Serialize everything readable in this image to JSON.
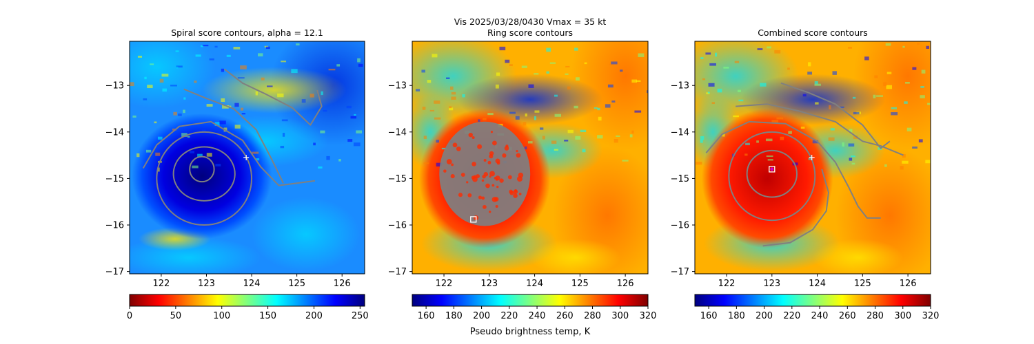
{
  "figure": {
    "suptitle_line1": "Vis  2025/03/28/0430    Vmax = 35 kt",
    "colorbar_xlabel": "Pseudo brightness temp, K"
  },
  "chart_data": [
    {
      "type": "heatmap",
      "title": "Spiral score contours, alpha = 12.1",
      "xlim": [
        121.3,
        126.5
      ],
      "ylim": [
        -17.05,
        -12.05
      ],
      "xticks": [
        "122",
        "123",
        "124",
        "125",
        "126"
      ],
      "yticks": [
        "−13",
        "−14",
        "−15",
        "−16",
        "−17"
      ],
      "colormap": "jet_r",
      "colorbar": {
        "range": [
          0,
          255
        ],
        "ticks": [
          "0",
          "50",
          "100",
          "150",
          "200",
          "250"
        ]
      },
      "background": "mostly cold blue with a deep blue core near 123E, -14.8",
      "contours": [
        {
          "kind": "closed",
          "center": [
            122.9,
            -14.8
          ],
          "rx": 0.27,
          "ry": 0.27
        },
        {
          "kind": "closed",
          "center": [
            122.95,
            -14.9
          ],
          "rx": 0.68,
          "ry": 0.58
        },
        {
          "kind": "closed",
          "center": [
            122.95,
            -15.0
          ],
          "rx": 1.05,
          "ry": 1.0
        },
        {
          "kind": "open",
          "points": [
            [
              121.6,
              -14.78
            ],
            [
              121.9,
              -14.28
            ],
            [
              122.4,
              -13.88
            ],
            [
              123.1,
              -13.78
            ],
            [
              123.8,
              -14.18
            ],
            [
              124.2,
              -14.75
            ],
            [
              124.6,
              -15.15
            ],
            [
              125.0,
              -15.1
            ],
            [
              125.4,
              -15.05
            ]
          ]
        },
        {
          "kind": "open",
          "points": [
            [
              122.5,
              -13.08
            ],
            [
              123.0,
              -13.28
            ],
            [
              123.6,
              -13.5
            ],
            [
              124.1,
              -13.95
            ],
            [
              124.45,
              -14.6
            ],
            [
              124.7,
              -15.1
            ]
          ]
        },
        {
          "kind": "open",
          "points": [
            [
              123.4,
              -12.65
            ],
            [
              123.8,
              -12.95
            ],
            [
              124.3,
              -13.18
            ],
            [
              124.9,
              -13.48
            ],
            [
              125.3,
              -13.85
            ],
            [
              125.55,
              -13.45
            ],
            [
              125.45,
              -13.1
            ]
          ]
        }
      ],
      "markers": [
        {
          "symbol": "+",
          "x": 123.88,
          "y": -14.55,
          "color": "#ffffff"
        }
      ]
    },
    {
      "type": "heatmap",
      "title": "Ring score contours",
      "xlim": [
        121.3,
        126.5
      ],
      "ylim": [
        -17.05,
        -12.05
      ],
      "xticks": [
        "122",
        "123",
        "124",
        "125",
        "126"
      ],
      "yticks": [
        "−13",
        "−14",
        "−15",
        "−16",
        "−17"
      ],
      "colormap": "jet",
      "colorbar": {
        "range": [
          150,
          320
        ],
        "ticks": [
          "160",
          "180",
          "200",
          "220",
          "240",
          "260",
          "280",
          "300",
          "320"
        ]
      },
      "background": "warm red/orange cloud shield centered near 123E, -15 with cooler cyan/blue banding to the north",
      "contour_blob": {
        "center": [
          122.9,
          -14.9
        ],
        "rx": 0.98,
        "ry": 1.1,
        "color": "#808080"
      },
      "markers": [
        {
          "symbol": "square",
          "x": 122.65,
          "y": -15.88,
          "color": "#ffffff"
        }
      ]
    },
    {
      "type": "heatmap",
      "title": "Combined score contours",
      "xlim": [
        121.3,
        126.5
      ],
      "ylim": [
        -17.05,
        -12.05
      ],
      "xticks": [
        "122",
        "123",
        "124",
        "125",
        "126"
      ],
      "yticks": [
        "−13",
        "−14",
        "−15",
        "−16",
        "−17"
      ],
      "colormap": "jet",
      "colorbar": {
        "range": [
          150,
          320
        ],
        "ticks": [
          "160",
          "180",
          "200",
          "220",
          "240",
          "260",
          "280",
          "300",
          "320"
        ]
      },
      "background": "warm red core near 123E, -14.9 with cooler cyan/blue banding to the north",
      "contours": [
        {
          "kind": "closed",
          "center": [
            123.0,
            -14.9
          ],
          "rx": 0.55,
          "ry": 0.5
        },
        {
          "kind": "closed",
          "center": [
            123.0,
            -14.95
          ],
          "rx": 0.95,
          "ry": 0.95
        },
        {
          "kind": "open",
          "points": [
            [
              121.55,
              -14.45
            ],
            [
              121.9,
              -14.05
            ],
            [
              122.5,
              -13.78
            ],
            [
              123.3,
              -13.82
            ],
            [
              124.0,
              -14.2
            ],
            [
              124.4,
              -14.65
            ],
            [
              124.7,
              -15.2
            ],
            [
              124.9,
              -15.6
            ],
            [
              125.1,
              -15.85
            ],
            [
              125.4,
              -15.85
            ]
          ]
        },
        {
          "kind": "open",
          "points": [
            [
              122.2,
              -13.45
            ],
            [
              122.9,
              -13.4
            ],
            [
              123.6,
              -13.55
            ],
            [
              124.4,
              -13.78
            ],
            [
              125.0,
              -14.2
            ],
            [
              125.4,
              -14.3
            ],
            [
              125.9,
              -14.5
            ]
          ]
        },
        {
          "kind": "open",
          "points": [
            [
              123.2,
              -12.95
            ],
            [
              123.8,
              -13.15
            ],
            [
              124.4,
              -13.4
            ],
            [
              125.0,
              -13.85
            ],
            [
              125.4,
              -14.35
            ],
            [
              125.6,
              -14.2
            ]
          ]
        },
        {
          "kind": "open",
          "points": [
            [
              122.8,
              -16.45
            ],
            [
              123.4,
              -16.38
            ],
            [
              123.9,
              -16.1
            ],
            [
              124.2,
              -15.7
            ],
            [
              124.25,
              -15.3
            ],
            [
              124.1,
              -14.8
            ]
          ]
        }
      ],
      "markers": [
        {
          "symbol": "+",
          "x": 123.88,
          "y": -14.55,
          "color": "#ffffff"
        },
        {
          "symbol": "square",
          "x": 123.0,
          "y": -14.8,
          "color": "#ffffff"
        },
        {
          "symbol": "dot",
          "x": 123.0,
          "y": -14.8,
          "color": "#cc00cc"
        }
      ]
    }
  ]
}
